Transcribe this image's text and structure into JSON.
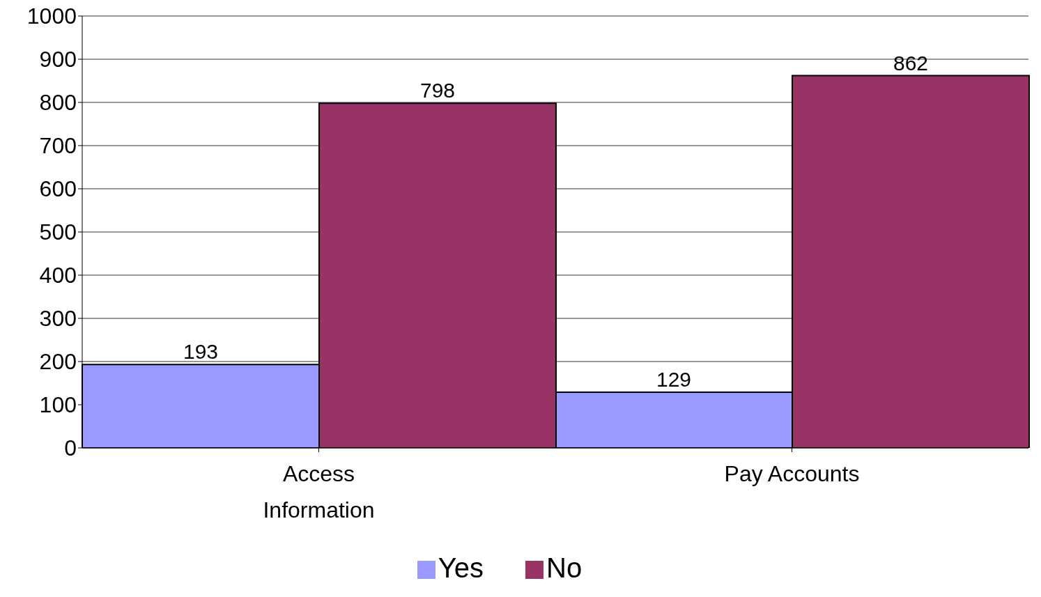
{
  "chart_data": {
    "type": "bar",
    "categories": [
      "Access Information",
      "Pay Accounts"
    ],
    "series": [
      {
        "name": "Yes",
        "color": "#9999ff",
        "values": [
          193,
          129
        ]
      },
      {
        "name": "No",
        "color": "#993366",
        "values": [
          798,
          862
        ]
      }
    ],
    "ylim": [
      0,
      1000
    ],
    "yticks": [
      0,
      100,
      200,
      300,
      400,
      500,
      600,
      700,
      800,
      900,
      1000
    ],
    "grid": "y",
    "legend": "bottom",
    "data_labels": true
  }
}
